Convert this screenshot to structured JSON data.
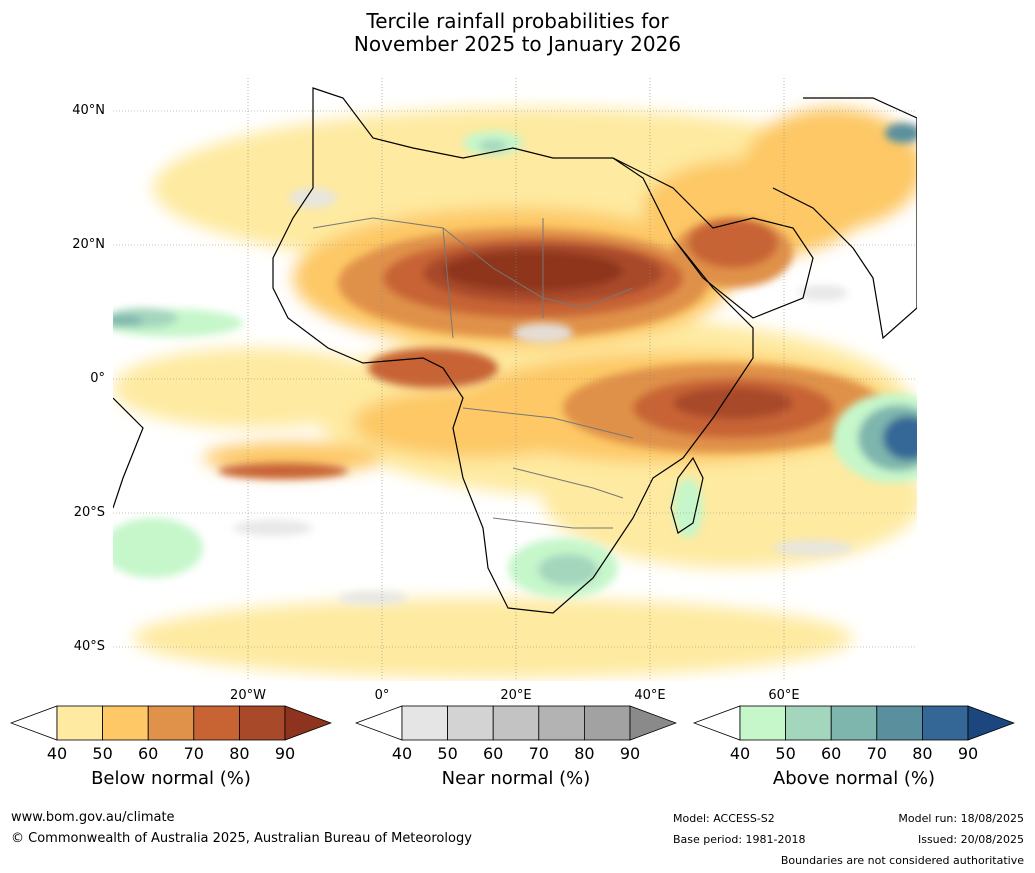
{
  "title": {
    "line1": "Tercile rainfall probabilities for",
    "line2": "November 2025 to January 2026"
  },
  "axes": {
    "lat_labels": [
      "40°N",
      "20°N",
      "0°",
      "20°S",
      "40°S"
    ],
    "lon_labels": [
      "20°W",
      "0°",
      "20°E",
      "40°E",
      "60°E"
    ]
  },
  "colorbars": [
    {
      "label": "Below normal (%)",
      "ticks": [
        "40",
        "50",
        "60",
        "70",
        "80",
        "90"
      ],
      "colors": [
        "#ffffff",
        "#feeaa0",
        "#fdc865",
        "#e0914a",
        "#c86434",
        "#a84a2a",
        "#8e341e"
      ]
    },
    {
      "label": "Near normal (%)",
      "ticks": [
        "40",
        "50",
        "60",
        "70",
        "80",
        "90"
      ],
      "colors": [
        "#ffffff",
        "#e5e5e5",
        "#d3d3d3",
        "#c3c3c3",
        "#b3b3b3",
        "#a2a2a2",
        "#8a8a8a"
      ]
    },
    {
      "label": "Above normal (%)",
      "ticks": [
        "40",
        "50",
        "60",
        "70",
        "80",
        "90"
      ],
      "colors": [
        "#ffffff",
        "#c6f7ca",
        "#a4d6be",
        "#7eb6ae",
        "#5a909e",
        "#356796",
        "#1c477e"
      ]
    }
  ],
  "footer": {
    "website": "www.bom.gov.au/climate",
    "copyright": "© Commonwealth of Australia 2025, Australian Bureau of Meteorology",
    "model": "Model: ACCESS-S2",
    "base_period": "Base period: 1981-2018",
    "model_run": "Model run: 18/08/2025",
    "issued": "Issued: 20/08/2025",
    "disclaimer": "Boundaries are not considered authoritative"
  }
}
